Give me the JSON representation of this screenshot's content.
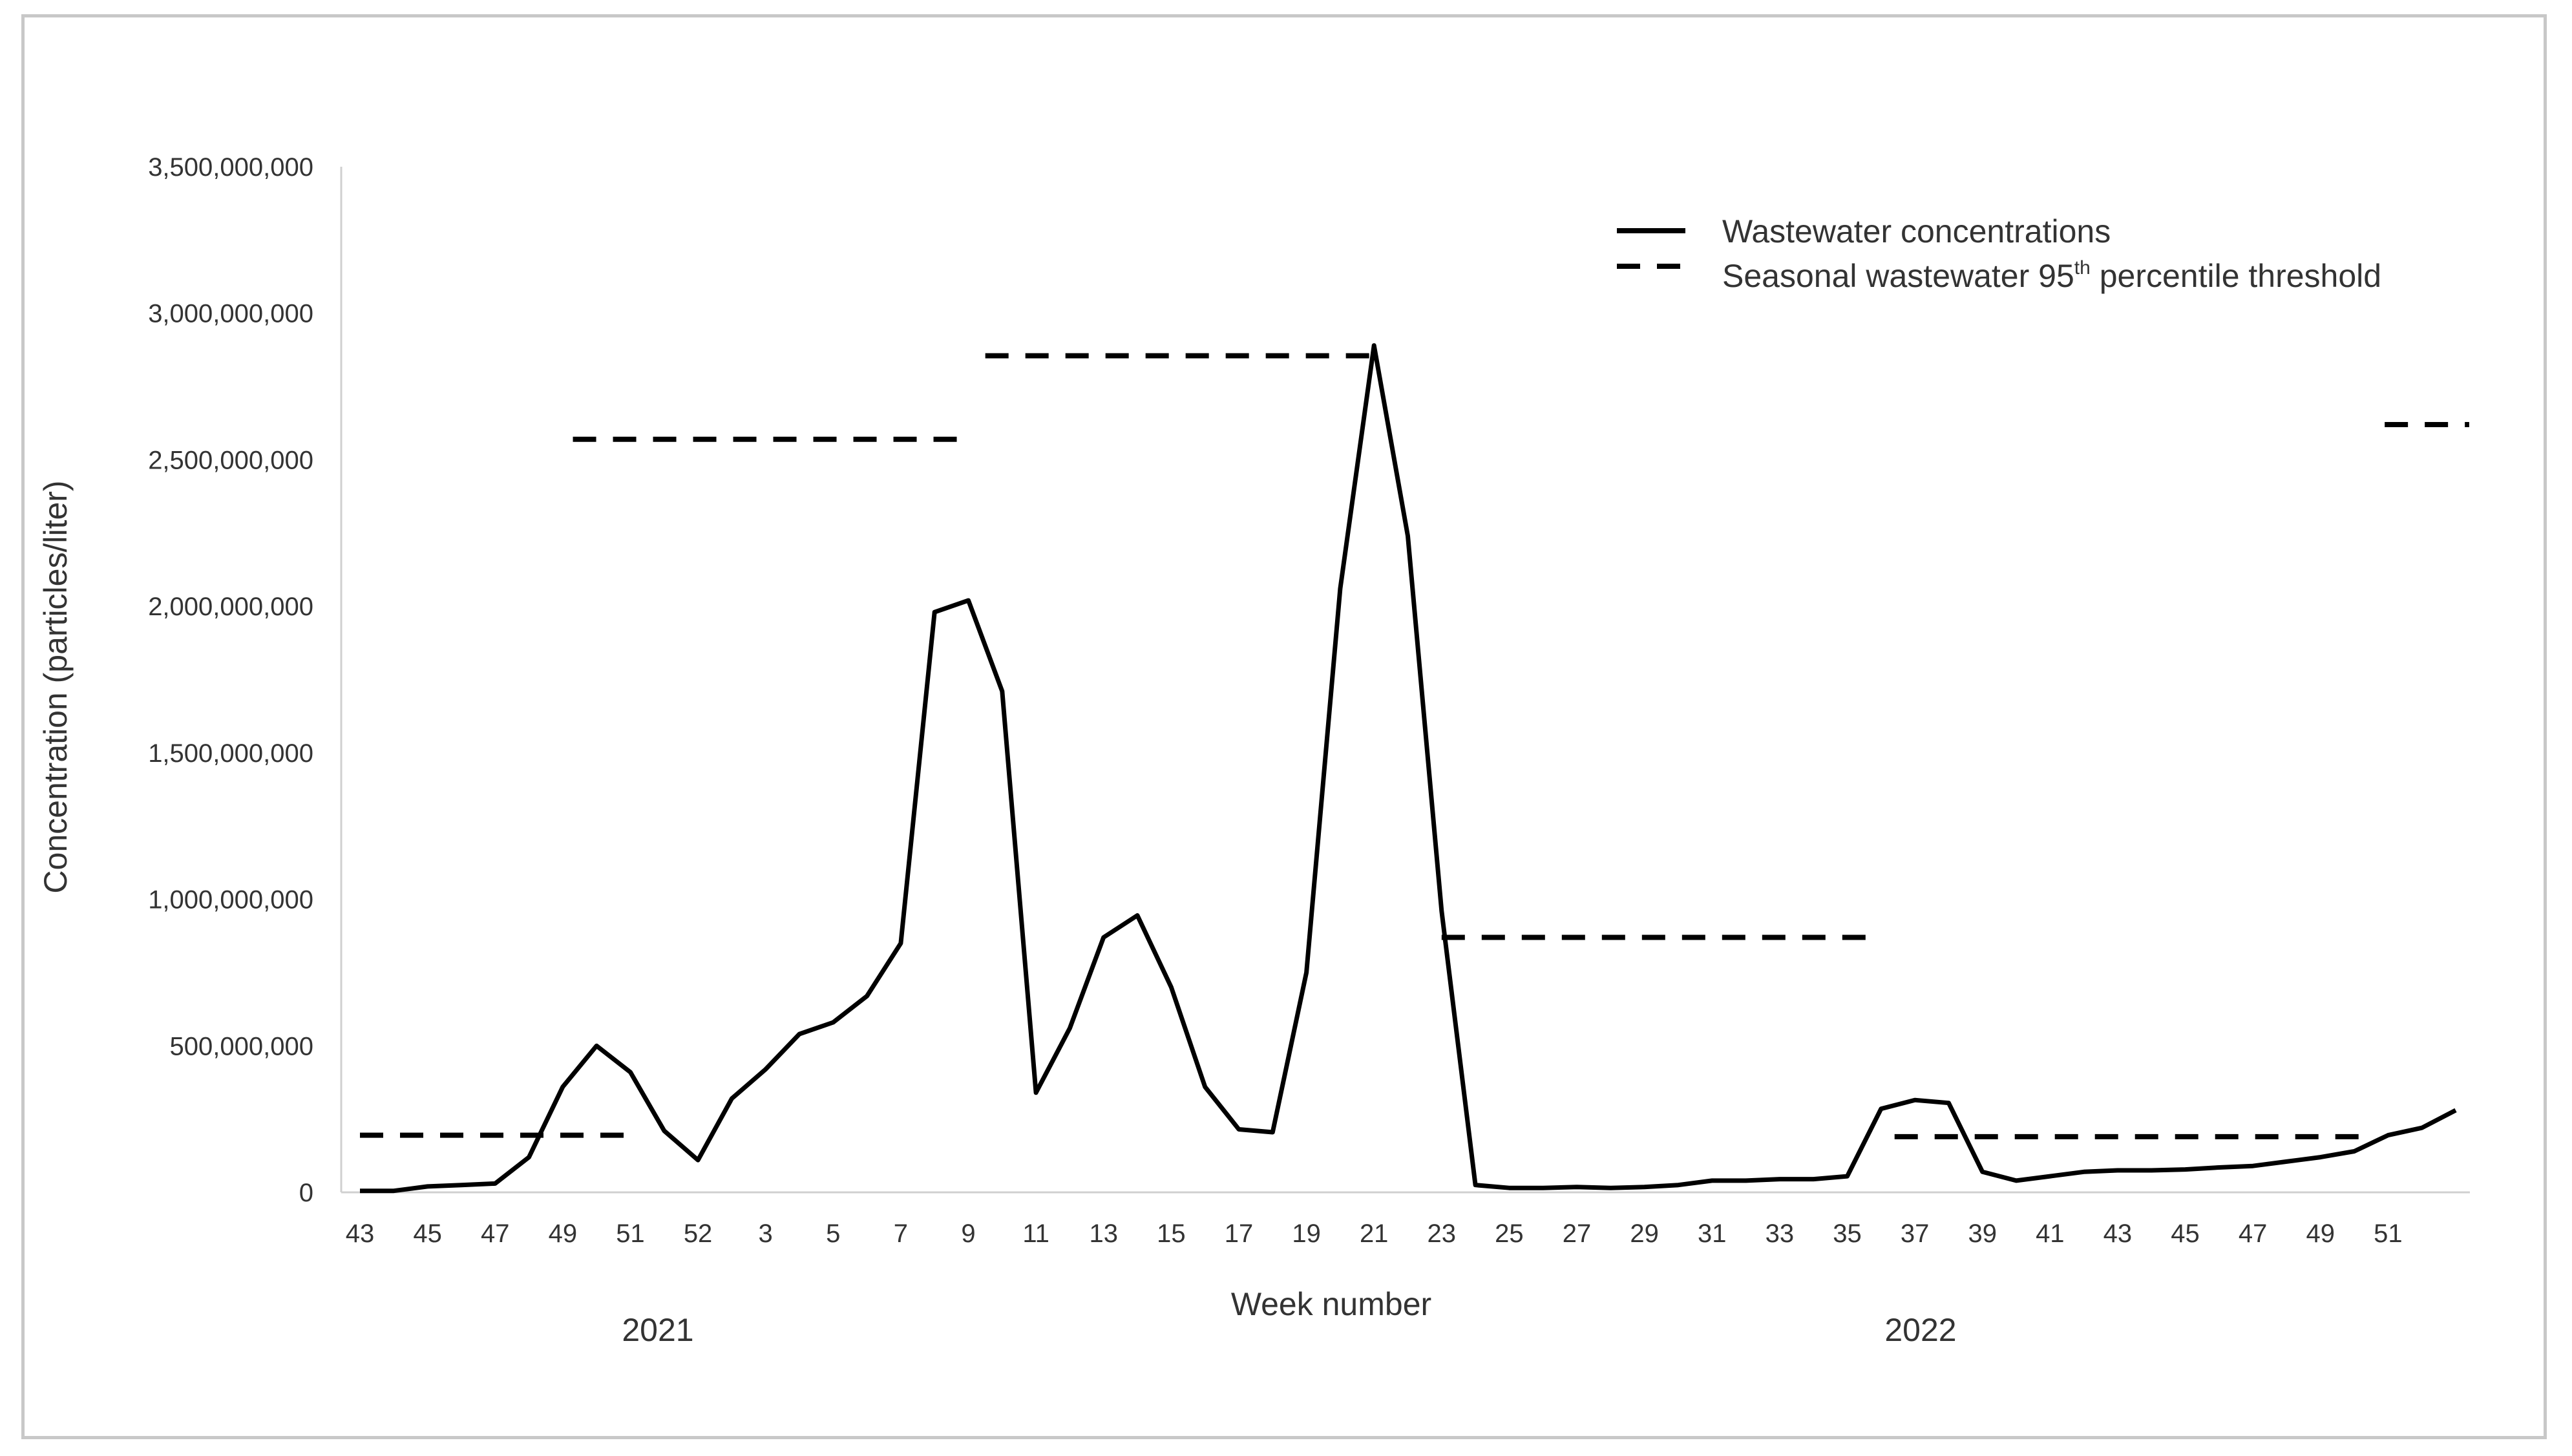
{
  "chart_data": {
    "type": "line",
    "xlabel": "Week number",
    "ylabel": "Concentration (particles/liter)",
    "ylim": [
      0,
      3500000000
    ],
    "yticks": [
      {
        "value": 0,
        "label": "0"
      },
      {
        "value": 500000000,
        "label": "500,000,000"
      },
      {
        "value": 1000000000,
        "label": "1,000,000,000"
      },
      {
        "value": 1500000000,
        "label": "1,500,000,000"
      },
      {
        "value": 2000000000,
        "label": "2,000,000,000"
      },
      {
        "value": 2500000000,
        "label": "2,500,000,000"
      },
      {
        "value": 3000000000,
        "label": "3,000,000,000"
      },
      {
        "value": 3500000000,
        "label": "3,500,000,000"
      }
    ],
    "xtick_labels": [
      "43",
      "45",
      "47",
      "49",
      "51",
      "52",
      "3",
      "5",
      "7",
      "9",
      "11",
      "13",
      "15",
      "17",
      "19",
      "21",
      "23",
      "25",
      "27",
      "29",
      "31",
      "33",
      "35",
      "37",
      "39",
      "41",
      "43",
      "45",
      "47",
      "49",
      "51"
    ],
    "year_labels": [
      "2021",
      "2022"
    ],
    "legend": {
      "placement": "top-right",
      "entries": [
        {
          "label": "Wastewater concentrations",
          "style": "solid"
        },
        {
          "label": "Seasonal wastewater 95",
          "sup": "th",
          "label_suffix": " percentile threshold",
          "style": "dashed"
        }
      ]
    },
    "series": [
      {
        "name": "Wastewater concentrations",
        "style": "solid",
        "color": "#000000",
        "values": [
          5000000,
          5000000,
          20000000,
          25000000,
          30000000,
          120000000,
          360000000,
          500000000,
          410000000,
          210000000,
          110000000,
          320000000,
          420000000,
          540000000,
          580000000,
          670000000,
          850000000,
          1980000000,
          2020000000,
          1710000000,
          340000000,
          560000000,
          870000000,
          945000000,
          700000000,
          360000000,
          215000000,
          205000000,
          750000000,
          2060000000,
          2890000000,
          2240000000,
          960000000,
          25000000,
          15000000,
          15000000,
          18000000,
          15000000,
          18000000,
          25000000,
          40000000,
          40000000,
          45000000,
          45000000,
          55000000,
          285000000,
          315000000,
          305000000,
          70000000,
          40000000,
          55000000,
          70000000,
          75000000,
          75000000,
          78000000,
          85000000,
          90000000,
          105000000,
          120000000,
          140000000,
          195000000,
          220000000,
          280000000
        ]
      },
      {
        "name": "Seasonal wastewater 95th percentile threshold",
        "style": "dashed",
        "color": "#000000",
        "segments": [
          {
            "from_index": 0,
            "to_index": 7.9,
            "value": 195000000
          },
          {
            "from_index": 6.3,
            "to_index": 17.7,
            "value": 2570000000
          },
          {
            "from_index": 18.5,
            "to_index": 30.0,
            "value": 2855000000
          },
          {
            "from_index": 32.0,
            "to_index": 44.8,
            "value": 870000000
          },
          {
            "from_index": 45.4,
            "to_index": 59.3,
            "value": 190000000
          },
          {
            "from_index": 59.9,
            "to_index": 62.4,
            "value": 2620000000
          }
        ]
      }
    ]
  }
}
